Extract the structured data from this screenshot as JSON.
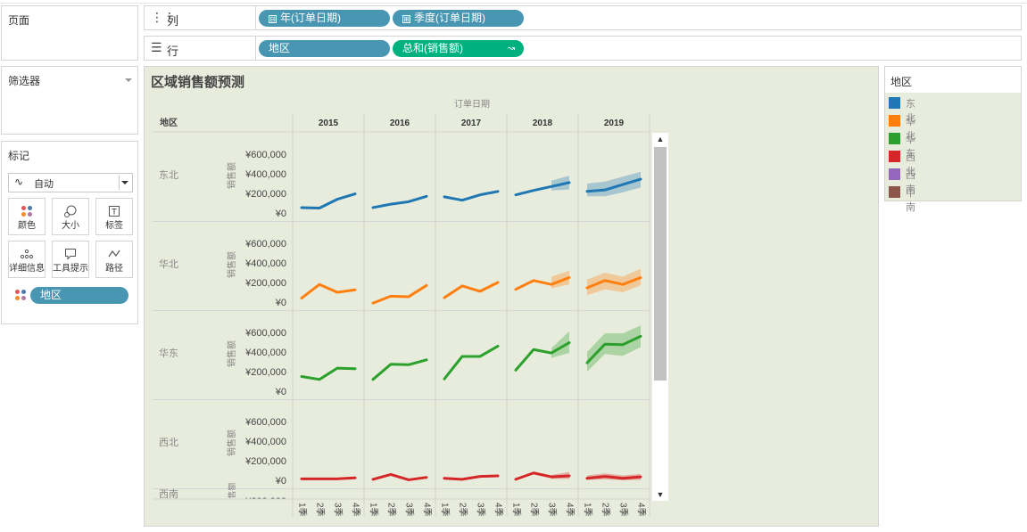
{
  "pages_panel": {
    "title": "页面"
  },
  "filters_panel": {
    "title": "筛选器"
  },
  "columns_shelf": {
    "label": "列",
    "icon": "columns-icon",
    "pills": [
      {
        "label": "年(订单日期)",
        "toggle": "⊟"
      },
      {
        "label": "季度(订单日期)",
        "toggle": "⊞"
      }
    ]
  },
  "rows_shelf": {
    "label": "行",
    "icon": "rows-icon",
    "pills": [
      {
        "label": "地区"
      },
      {
        "label": "总和(销售额)"
      }
    ]
  },
  "marks_panel": {
    "title": "标记",
    "mark_type": "自动",
    "buttons": [
      {
        "label": "颜色",
        "icon": "color-icon"
      },
      {
        "label": "大小",
        "icon": "size-icon"
      },
      {
        "label": "标签",
        "icon": "label-icon"
      },
      {
        "label": "详细信息",
        "icon": "detail-icon"
      },
      {
        "label": "工具提示",
        "icon": "tooltip-icon"
      },
      {
        "label": "路径",
        "icon": "path-icon"
      }
    ],
    "field_pill": "地区"
  },
  "legend": {
    "title": "地区",
    "items": [
      {
        "label": "东北",
        "color": "#1f77b4"
      },
      {
        "label": "华北",
        "color": "#ff7f0e"
      },
      {
        "label": "华东",
        "color": "#2ca02c"
      },
      {
        "label": "西北",
        "color": "#d62728"
      },
      {
        "label": "西南",
        "color": "#9467bd"
      },
      {
        "label": "中南",
        "color": "#8c564b"
      }
    ]
  },
  "viz": {
    "title": "区域销售额预测",
    "column_header_title": "订单日期",
    "row_header_title": "地区",
    "measure_label": "销售额"
  },
  "chart_data": {
    "type": "line",
    "title": "区域销售额预测",
    "x_header": "订单日期",
    "row_header": "地区",
    "ylabel": "销售额",
    "years": [
      "2015",
      "2016",
      "2017",
      "2018",
      "2019"
    ],
    "quarters": [
      "1季",
      "2季",
      "3季",
      "4季"
    ],
    "y_ticks": [
      "¥0",
      "¥200,000",
      "¥400,000",
      "¥600,000"
    ],
    "ylim": [
      0,
      700000
    ],
    "forecast_shaded": "2018 Q3–2019 Q4",
    "series": [
      {
        "name": "东北",
        "color": "#1f77b4",
        "values": [
          55000,
          50000,
          140000,
          195000,
          55000,
          90000,
          115000,
          170000,
          165000,
          130000,
          185000,
          220000,
          185000,
          230000,
          270000,
          310000,
          220000,
          235000,
          290000,
          345000
        ],
        "bands": [
          null,
          null,
          null,
          null,
          null,
          null,
          null,
          null,
          null,
          null,
          null,
          null,
          null,
          null,
          [
            230000,
            330000
          ],
          [
            240000,
            380000
          ],
          [
            170000,
            300000
          ],
          [
            170000,
            320000
          ],
          [
            210000,
            370000
          ],
          [
            260000,
            420000
          ]
        ]
      },
      {
        "name": "华北",
        "color": "#ff7f0e",
        "values": [
          40000,
          180000,
          100000,
          125000,
          -10000,
          60000,
          55000,
          170000,
          45000,
          165000,
          110000,
          200000,
          130000,
          220000,
          180000,
          250000,
          145000,
          220000,
          180000,
          250000
        ],
        "bands": [
          null,
          null,
          null,
          null,
          null,
          null,
          null,
          null,
          null,
          null,
          null,
          null,
          null,
          null,
          [
            140000,
            260000
          ],
          [
            180000,
            320000
          ],
          [
            70000,
            230000
          ],
          [
            130000,
            300000
          ],
          [
            100000,
            260000
          ],
          [
            170000,
            340000
          ]
        ]
      },
      {
        "name": "华东",
        "color": "#2ca02c",
        "values": [
          150000,
          120000,
          235000,
          230000,
          120000,
          275000,
          270000,
          320000,
          125000,
          355000,
          355000,
          460000,
          215000,
          425000,
          390000,
          495000,
          290000,
          480000,
          475000,
          560000
        ],
        "bands": [
          null,
          null,
          null,
          null,
          null,
          null,
          null,
          null,
          null,
          null,
          null,
          null,
          null,
          null,
          [
            340000,
            440000
          ],
          [
            390000,
            610000
          ],
          [
            200000,
            400000
          ],
          [
            380000,
            590000
          ],
          [
            360000,
            590000
          ],
          [
            450000,
            670000
          ]
        ]
      },
      {
        "name": "西北",
        "color": "#d62728",
        "values": [
          15000,
          15000,
          15000,
          25000,
          10000,
          60000,
          5000,
          30000,
          20000,
          10000,
          40000,
          45000,
          10000,
          75000,
          35000,
          45000,
          20000,
          40000,
          20000,
          35000
        ],
        "bands": [
          null,
          null,
          null,
          null,
          null,
          null,
          null,
          null,
          null,
          null,
          null,
          null,
          null,
          null,
          [
            15000,
            55000
          ],
          [
            15000,
            85000
          ],
          [
            5000,
            50000
          ],
          [
            10000,
            70000
          ],
          [
            0,
            50000
          ],
          [
            5000,
            65000
          ]
        ]
      }
    ],
    "partially_visible_row": "西南"
  }
}
